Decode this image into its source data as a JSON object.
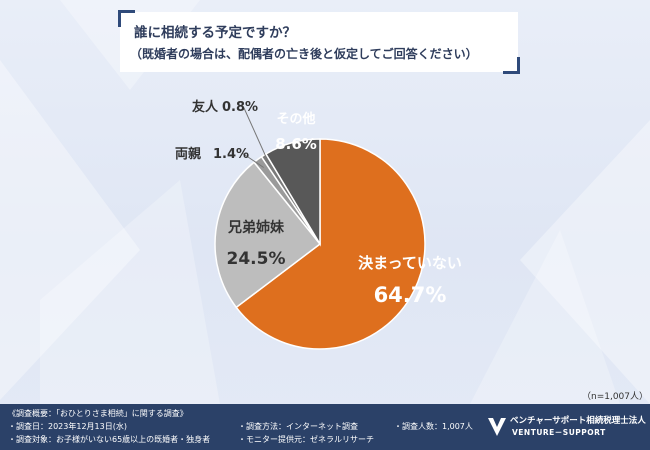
{
  "title": {
    "line1": "誰に相続する予定ですか？",
    "line2": "（既婚者の場合は、配偶者の亡き後と仮定してご回答ください）"
  },
  "chart_data": {
    "type": "pie",
    "categories": [
      "決まっていない",
      "兄弟姉妹",
      "両親",
      "友人",
      "その他"
    ],
    "values": [
      64.7,
      24.5,
      1.4,
      0.8,
      8.6
    ],
    "labels": [
      "64.7%",
      "24.5%",
      "1.4%",
      "0.8%",
      "8.6%"
    ],
    "colors": [
      "#de6f1e",
      "#bdbdbd",
      "#9a9a9a",
      "#7a7a7a",
      "#585858"
    ]
  },
  "note": "（n=1,007人）",
  "footer": {
    "overview": "《調査概要：「おひとりさま相続」に関する調査》",
    "date": "・調査日：2023年12月13日(水)",
    "target": "・調査対象：お子様がいない65歳以上の既婚者・独身者",
    "method": "・調査方法：インターネット調査",
    "provider": "・モニター提供元：ゼネラルリサーチ",
    "count": "・調査人数：1,007人",
    "logo_name": "ベンチャーサポート相続税理士法人",
    "logo_sub": "VENTURE－SUPPORT"
  }
}
